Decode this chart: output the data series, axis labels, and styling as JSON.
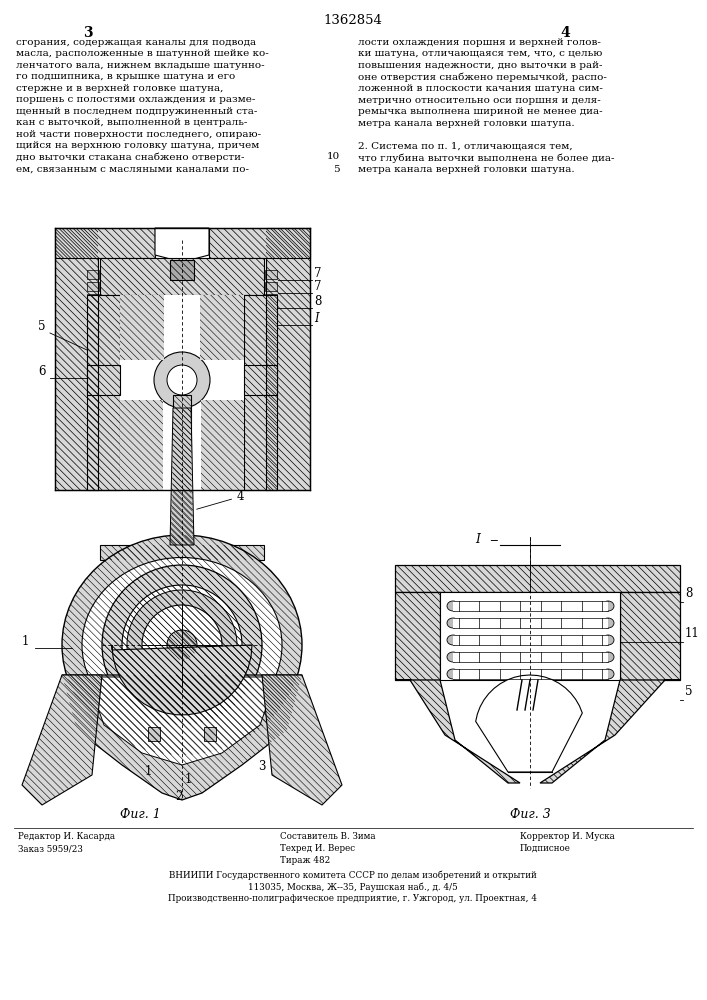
{
  "patent_number": "1362854",
  "page_left": "3",
  "page_right": "4",
  "background_color": "#ffffff",
  "text_color": "#000000",
  "text_left": "сгорания, содержащая каналы для подвода\nмасла, расположенные в шатунной шейке ко-\nленчатого вала, нижнем вкладыше шатунно-\nго подшипника, в крышке шатуна и его\nстержне и в верхней головке шатуна,\nпоршень с полостями охлаждения и разме-\nщенный в последнем подпружиненный ста-\nкан с выточкой, выполненной в централь-\nной части поверхности последнего, опираю-\nщийся на верхнюю головку шатуна, причем\nдно выточки стакана снабжено отверсти-\nем, связанным с масляными каналами по-",
  "text_right": "лости охлаждения поршня и верхней голов-\nки шатуна, отличающаяся тем, что, с целью\nповышения надежности, дно выточки в рай-\nоне отверстия снабжено перемычкой, распо-\nложенной в плоскости качания шатуна сим-\nметрично относительно оси поршня и деля-\nремычка выполнена шириной не менее диа-\nметра канала верхней головки шатупа.\n\n2. Система по п. 1, отличающаяся тем,\nчто глубина выточки выполнена не более диа-\nметра канала верхней головки шатуна.",
  "fig1_label": "Фиг. 1",
  "fig3_label": "Фиг. 3",
  "editor_line1": "Редактор И. Касарда",
  "editor_line2": "Заказ 5959/23",
  "composer_line1": "Составитель В. Зима",
  "techred_line1": "Техред И. Верес",
  "techred_line2": "Тираж 482",
  "corrector_line1": "Корректор И. Муска",
  "corrector_line2": "Подписное",
  "vniipmi_line1": "ВНИИПИ Государственного комитета СССР по делам изобретений и открытий",
  "vniipmi_line2": "113035, Москва, Ж--35, Раушская наб., д. 4/5",
  "vniipmi_line3": "Производственно-полиграфическое предприятие, г. Ужгород, ул. Проектная, 4"
}
